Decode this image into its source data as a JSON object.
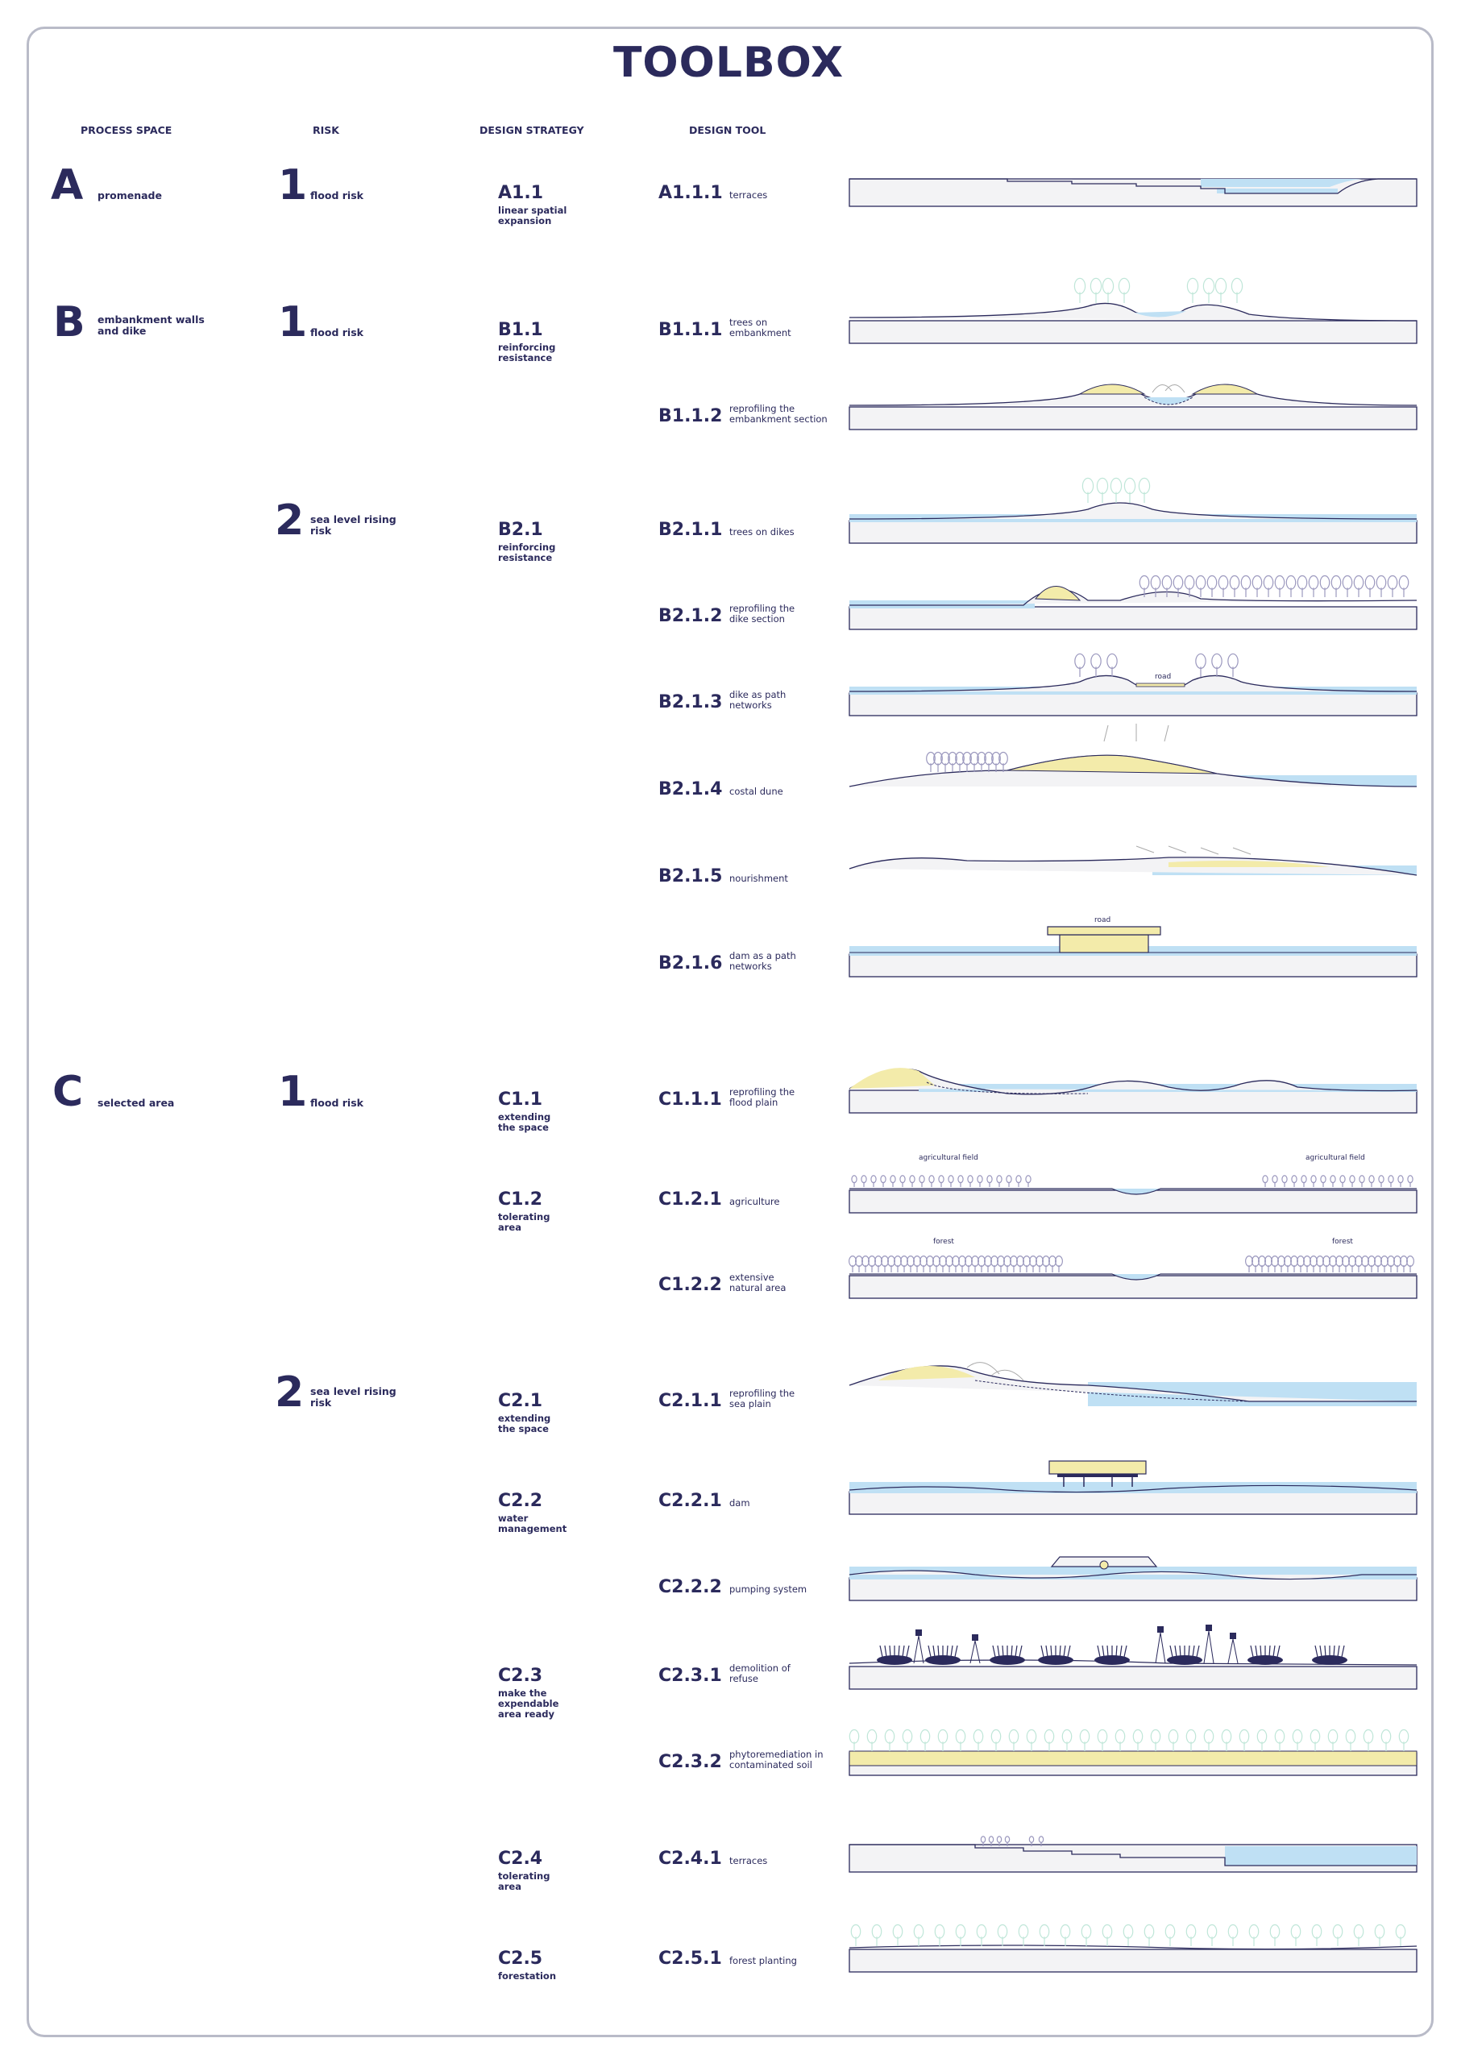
{
  "title": "TOOLBOX",
  "headers": {
    "process_space": "PROCESS SPACE",
    "risk": "RISK",
    "design_strategy": "DESIGN STRATEGY",
    "design_tool": "DESIGN TOOL"
  },
  "process_spaces": [
    {
      "letter": "A",
      "label": "promenade"
    },
    {
      "letter": "B",
      "label": "embankment walls\nand dike"
    },
    {
      "letter": "C",
      "label": "selected area"
    }
  ],
  "risks": [
    {
      "num": "1",
      "label": "flood risk"
    },
    {
      "num": "1",
      "label": "flood risk"
    },
    {
      "num": "2",
      "label": "sea level rising\nrisk"
    },
    {
      "num": "1",
      "label": "flood risk"
    },
    {
      "num": "2",
      "label": "sea level rising\nrisk"
    }
  ],
  "strategies": [
    {
      "code": "A1.1",
      "label": "linear spatial\nexpansion"
    },
    {
      "code": "B1.1",
      "label": "reinforcing\nresistance"
    },
    {
      "code": "B2.1",
      "label": "reinforcing\nresistance"
    },
    {
      "code": "C1.1",
      "label": "extending\nthe space"
    },
    {
      "code": "C1.2",
      "label": "tolerating\narea"
    },
    {
      "code": "C2.1",
      "label": "extending\nthe space"
    },
    {
      "code": "C2.2",
      "label": "water\nmanagement"
    },
    {
      "code": "C2.3",
      "label": "make the\nexpendable\narea ready"
    },
    {
      "code": "C2.4",
      "label": "tolerating\narea"
    },
    {
      "code": "C2.5",
      "label": "forestation"
    }
  ],
  "tools": [
    {
      "code": "A1.1.1",
      "label": "terraces"
    },
    {
      "code": "B1.1.1",
      "label": "trees on\nembankment"
    },
    {
      "code": "B1.1.2",
      "label": "reprofiling the\nembankment section"
    },
    {
      "code": "B2.1.1",
      "label": "trees on dikes"
    },
    {
      "code": "B2.1.2",
      "label": "reprofiling the\ndike section"
    },
    {
      "code": "B2.1.3",
      "label": "dike as path\nnetworks"
    },
    {
      "code": "B2.1.4",
      "label": "costal dune"
    },
    {
      "code": "B2.1.5",
      "label": "nourishment"
    },
    {
      "code": "B2.1.6",
      "label": "dam as a path\nnetworks"
    },
    {
      "code": "C1.1.1",
      "label": "reprofiling the\nflood plain"
    },
    {
      "code": "C1.2.1",
      "label": "agriculture"
    },
    {
      "code": "C1.2.2",
      "label": "extensive\nnatural area"
    },
    {
      "code": "C2.1.1",
      "label": "reprofiling the\nsea plain"
    },
    {
      "code": "C2.2.1",
      "label": "dam"
    },
    {
      "code": "C2.2.2",
      "label": "pumping system"
    },
    {
      "code": "C2.3.1",
      "label": "demolition of\nrefuse"
    },
    {
      "code": "C2.3.2",
      "label": "phytoremediation in\ncontaminated soil"
    },
    {
      "code": "C2.4.1",
      "label": "terraces"
    },
    {
      "code": "C2.5.1",
      "label": "forest planting"
    }
  ],
  "annotations": {
    "road_1": "road",
    "road_2": "road",
    "agri_left": "agricultural field",
    "agri_right": "agricultural field",
    "forest_left": "forest",
    "forest_right": "forest"
  },
  "colors": {
    "ink": "#2b2a5c",
    "water": "#bfe0f4",
    "sand": "#f3ebaa",
    "tree": "#bfe6d8"
  }
}
